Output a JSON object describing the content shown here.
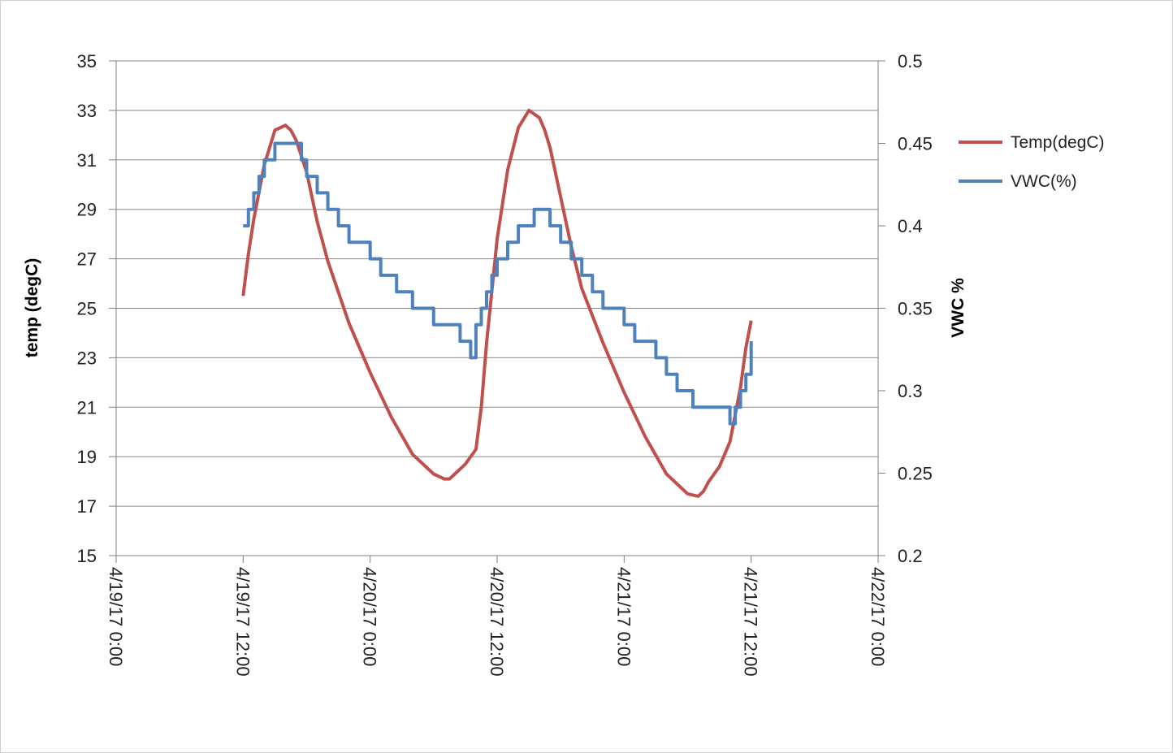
{
  "colors": {
    "temp_series": "#c0504d",
    "vwc_series": "#4f81bd",
    "gridline": "#888888",
    "axis": "#808080"
  },
  "chart_data": {
    "type": "line",
    "title": "",
    "xlabel": "",
    "ylabel": "temp (degC)",
    "y2label": "VWC %",
    "xlim": [
      "2017-04-19T00:00",
      "2017-04-22T00:00"
    ],
    "ylim": [
      15,
      35
    ],
    "y2lim": [
      0.2,
      0.5
    ],
    "grid": true,
    "legend_position": "right",
    "x_tick_labels": [
      "4/19/17 0:00",
      "4/19/17 12:00",
      "4/20/17 0:00",
      "4/20/17 12:00",
      "4/21/17 0:00",
      "4/21/17 12:00",
      "4/22/17 0:00"
    ],
    "y_tick_labels": [
      "35",
      "33",
      "31",
      "29",
      "27",
      "25",
      "23",
      "21",
      "19",
      "17",
      "15"
    ],
    "y2_tick_labels": [
      "0.5",
      "0.45",
      "0.4",
      "0.35",
      "0.3",
      "0.25",
      "0.2"
    ],
    "series": [
      {
        "name": "Temp(degC)",
        "axis": "left",
        "x": [
          "2017-04-19T12:00",
          "2017-04-19T12:30",
          "2017-04-19T13:00",
          "2017-04-19T14:00",
          "2017-04-19T15:00",
          "2017-04-19T16:00",
          "2017-04-19T16:30",
          "2017-04-19T17:00",
          "2017-04-19T18:00",
          "2017-04-19T19:00",
          "2017-04-19T20:00",
          "2017-04-19T22:00",
          "2017-04-20T00:00",
          "2017-04-20T02:00",
          "2017-04-20T04:00",
          "2017-04-20T06:00",
          "2017-04-20T07:00",
          "2017-04-20T07:30",
          "2017-04-20T08:00",
          "2017-04-20T09:00",
          "2017-04-20T10:00",
          "2017-04-20T10:30",
          "2017-04-20T11:00",
          "2017-04-20T12:00",
          "2017-04-20T13:00",
          "2017-04-20T14:00",
          "2017-04-20T15:00",
          "2017-04-20T16:00",
          "2017-04-20T16:30",
          "2017-04-20T17:00",
          "2017-04-20T18:00",
          "2017-04-20T19:00",
          "2017-04-20T20:00",
          "2017-04-20T22:00",
          "2017-04-21T00:00",
          "2017-04-21T02:00",
          "2017-04-21T04:00",
          "2017-04-21T06:00",
          "2017-04-21T07:00",
          "2017-04-21T07:30",
          "2017-04-21T08:00",
          "2017-04-21T09:00",
          "2017-04-21T10:00",
          "2017-04-21T11:00",
          "2017-04-21T11:30",
          "2017-04-21T12:00"
        ],
        "values": [
          25.5,
          27.2,
          28.6,
          30.8,
          32.2,
          32.4,
          32.2,
          31.8,
          30.5,
          28.5,
          26.9,
          24.4,
          22.4,
          20.6,
          19.1,
          18.3,
          18.1,
          18.1,
          18.3,
          18.7,
          19.3,
          21.0,
          23.6,
          27.8,
          30.6,
          32.3,
          33.0,
          32.7,
          32.2,
          31.5,
          29.5,
          27.5,
          25.8,
          23.6,
          21.6,
          19.8,
          18.3,
          17.5,
          17.4,
          17.6,
          18.0,
          18.6,
          19.6,
          21.8,
          23.4,
          24.5
        ]
      },
      {
        "name": "VWC(%)",
        "axis": "right",
        "step": true,
        "x": [
          "2017-04-19T12:00",
          "2017-04-19T12:30",
          "2017-04-19T13:00",
          "2017-04-19T13:30",
          "2017-04-19T14:00",
          "2017-04-19T15:00",
          "2017-04-19T17:30",
          "2017-04-19T18:00",
          "2017-04-19T19:00",
          "2017-04-19T20:00",
          "2017-04-19T21:00",
          "2017-04-19T22:00",
          "2017-04-20T00:00",
          "2017-04-20T01:00",
          "2017-04-20T02:30",
          "2017-04-20T04:00",
          "2017-04-20T06:00",
          "2017-04-20T08:30",
          "2017-04-20T09:30",
          "2017-04-20T10:00",
          "2017-04-20T10:30",
          "2017-04-20T11:00",
          "2017-04-20T11:30",
          "2017-04-20T12:00",
          "2017-04-20T13:00",
          "2017-04-20T14:00",
          "2017-04-20T15:30",
          "2017-04-20T17:00",
          "2017-04-20T18:00",
          "2017-04-20T19:00",
          "2017-04-20T20:00",
          "2017-04-20T21:00",
          "2017-04-20T22:00",
          "2017-04-21T00:00",
          "2017-04-21T01:00",
          "2017-04-21T03:00",
          "2017-04-21T04:00",
          "2017-04-21T05:00",
          "2017-04-21T06:30",
          "2017-04-21T10:00",
          "2017-04-21T10:30",
          "2017-04-21T11:00",
          "2017-04-21T11:30",
          "2017-04-21T12:00"
        ],
        "values": [
          0.4,
          0.41,
          0.42,
          0.43,
          0.44,
          0.45,
          0.44,
          0.43,
          0.42,
          0.41,
          0.4,
          0.39,
          0.38,
          0.37,
          0.36,
          0.35,
          0.34,
          0.33,
          0.32,
          0.34,
          0.35,
          0.36,
          0.37,
          0.38,
          0.39,
          0.4,
          0.41,
          0.4,
          0.39,
          0.38,
          0.37,
          0.36,
          0.35,
          0.34,
          0.33,
          0.32,
          0.31,
          0.3,
          0.29,
          0.28,
          0.29,
          0.3,
          0.31,
          0.33
        ]
      }
    ]
  }
}
